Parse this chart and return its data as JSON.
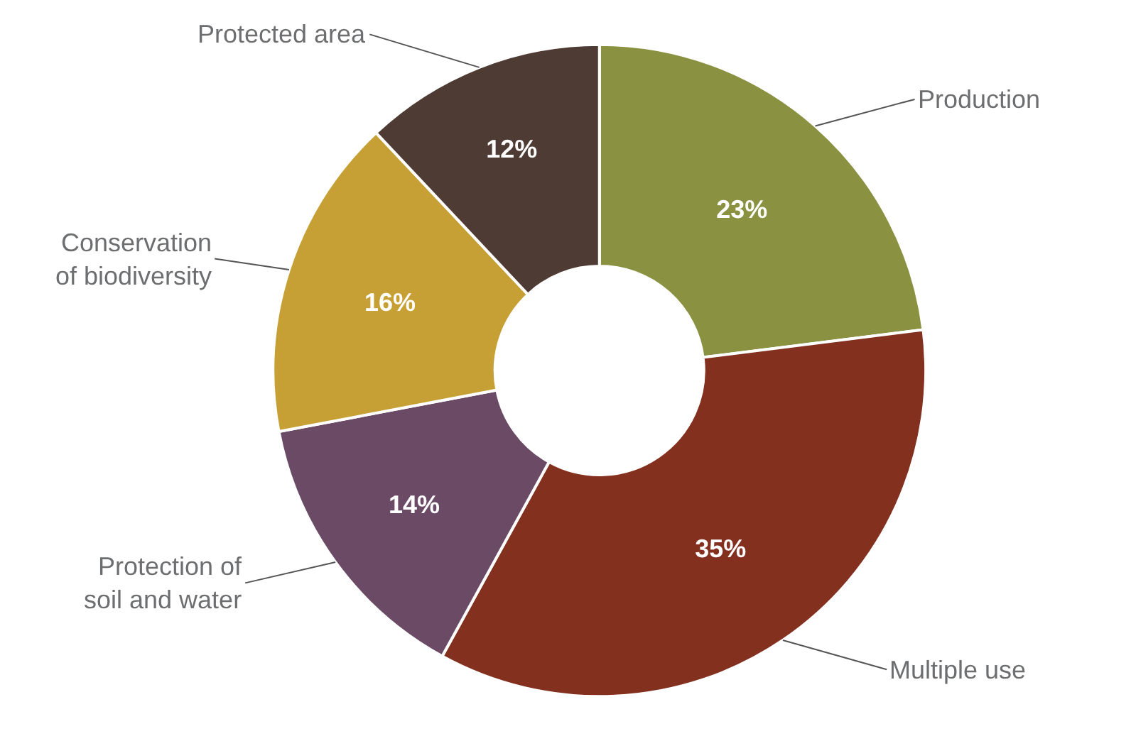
{
  "chart_data": {
    "type": "donut",
    "categories": [
      "Production",
      "Multiple use",
      "Protection of\nsoil and water",
      "Conservation\nof biodiversity",
      "Protected area"
    ],
    "values": [
      23,
      35,
      14,
      16,
      12
    ],
    "colors": [
      "#8a9140",
      "#83301f",
      "#6b4a66",
      "#c7a035",
      "#4e3b33"
    ],
    "value_labels": [
      "23%",
      "35%",
      "14%",
      "16%",
      "12%"
    ],
    "legend": false
  }
}
